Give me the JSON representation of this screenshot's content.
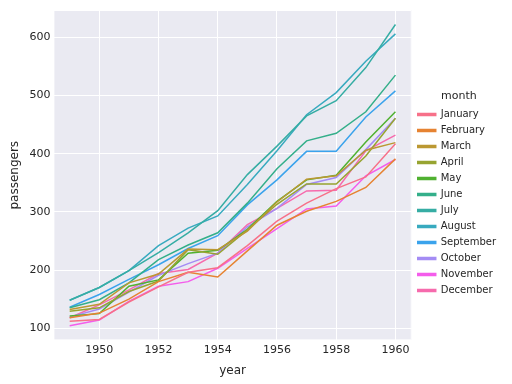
{
  "chart_data": {
    "type": "line",
    "x_label": "year",
    "y_label": "passengers",
    "legend_title": "month",
    "x": [
      1949,
      1950,
      1951,
      1952,
      1953,
      1954,
      1955,
      1956,
      1957,
      1958,
      1959,
      1960
    ],
    "series": [
      {
        "name": "January",
        "color": "#f77189",
        "values": [
          112,
          115,
          145,
          171,
          196,
          204,
          242,
          284,
          315,
          340,
          360,
          417
        ]
      },
      {
        "name": "February",
        "color": "#e68332",
        "values": [
          118,
          126,
          150,
          180,
          196,
          188,
          233,
          277,
          301,
          318,
          342,
          391
        ]
      },
      {
        "name": "March",
        "color": "#bb9832",
        "values": [
          132,
          141,
          178,
          193,
          236,
          235,
          267,
          317,
          356,
          362,
          406,
          419
        ]
      },
      {
        "name": "April",
        "color": "#97a431",
        "values": [
          129,
          135,
          163,
          181,
          235,
          227,
          269,
          313,
          348,
          348,
          396,
          461
        ]
      },
      {
        "name": "May",
        "color": "#50b131",
        "values": [
          121,
          125,
          172,
          183,
          229,
          234,
          270,
          318,
          355,
          363,
          420,
          472
        ]
      },
      {
        "name": "June",
        "color": "#34af8a",
        "values": [
          135,
          149,
          178,
          218,
          243,
          264,
          315,
          374,
          422,
          435,
          472,
          535
        ]
      },
      {
        "name": "July",
        "color": "#36ada4",
        "values": [
          148,
          170,
          199,
          230,
          264,
          302,
          364,
          413,
          465,
          491,
          548,
          622
        ]
      },
      {
        "name": "August",
        "color": "#38aabf",
        "values": [
          148,
          170,
          199,
          242,
          272,
          293,
          347,
          405,
          467,
          505,
          559,
          606
        ]
      },
      {
        "name": "September",
        "color": "#3ba3ec",
        "values": [
          136,
          158,
          184,
          209,
          237,
          259,
          312,
          355,
          404,
          404,
          463,
          508
        ]
      },
      {
        "name": "October",
        "color": "#a48cf4",
        "values": [
          119,
          133,
          162,
          191,
          211,
          229,
          274,
          306,
          347,
          359,
          407,
          461
        ]
      },
      {
        "name": "November",
        "color": "#f45deb",
        "values": [
          104,
          114,
          146,
          172,
          180,
          203,
          237,
          271,
          305,
          310,
          362,
          390
        ]
      },
      {
        "name": "December",
        "color": "#f66bad",
        "values": [
          118,
          140,
          166,
          194,
          201,
          229,
          278,
          306,
          336,
          337,
          405,
          432
        ]
      }
    ],
    "xlim": [
      1948.45,
      1960.55
    ],
    "xticks": [
      1950,
      1952,
      1954,
      1956,
      1958,
      1960
    ],
    "ylim": [
      79,
      647
    ],
    "yticks": [
      100,
      200,
      300,
      400,
      500,
      600
    ],
    "grid": true,
    "legend": "right"
  }
}
